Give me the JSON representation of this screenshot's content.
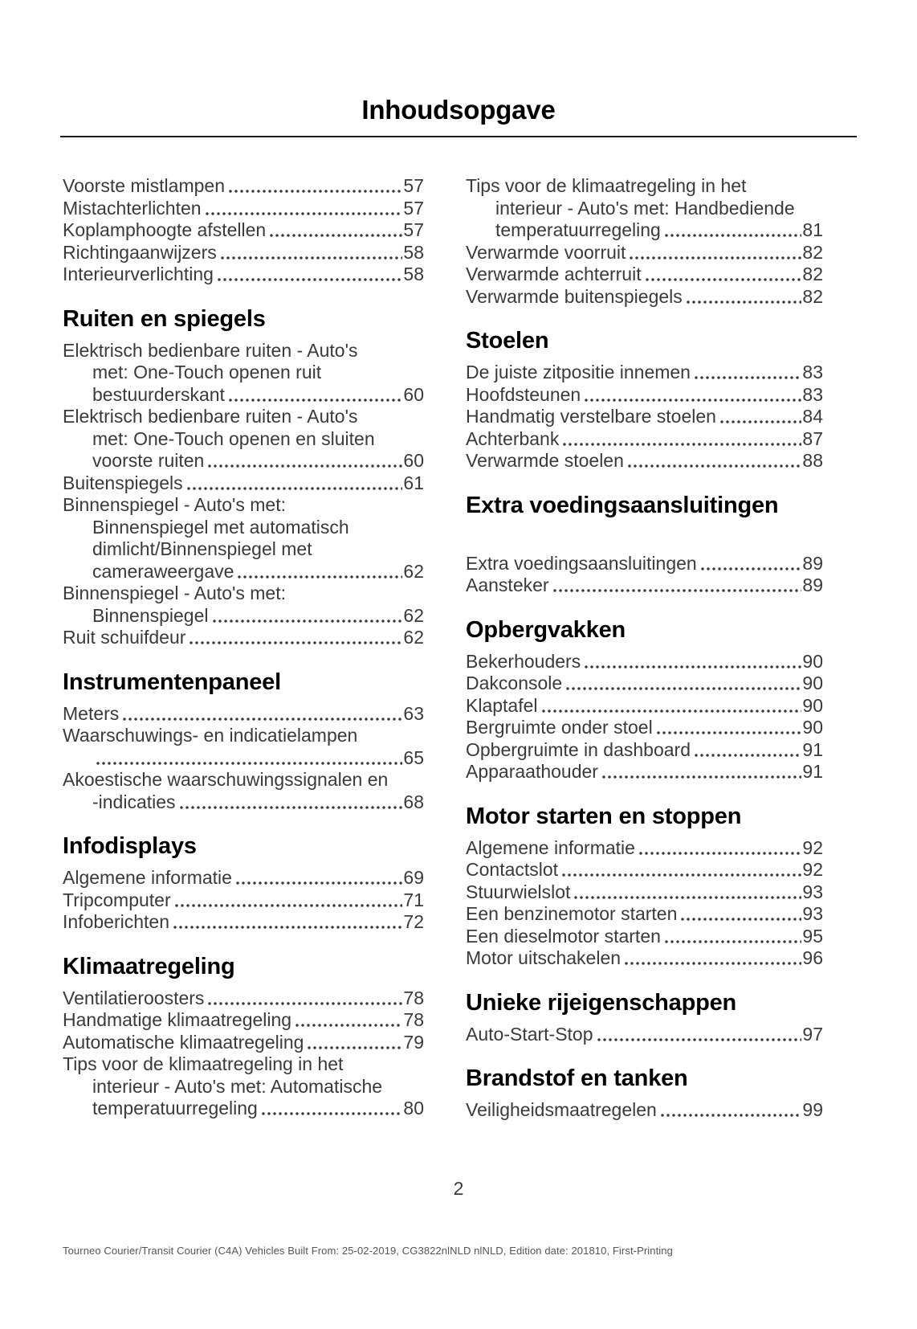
{
  "page": {
    "title": "Inhoudsopgave",
    "page_number": "2",
    "footer": "Tourneo Courier/Transit Courier (C4A) Vehicles Built From: 25-02-2019, CG3822nlNLD nlNLD, Edition date: 201810, First-Printing"
  },
  "colors": {
    "heading_text": "#000000",
    "entry_text": "#3a3a3a",
    "divider": "#1c1c1c"
  },
  "columns": {
    "left": [
      {
        "heading": null,
        "entries": [
          {
            "lines": [
              "Voorste mistlampen"
            ],
            "page": "57"
          },
          {
            "lines": [
              "Mistachterlichten"
            ],
            "page": "57"
          },
          {
            "lines": [
              "Koplamphoogte afstellen"
            ],
            "page": "57"
          },
          {
            "lines": [
              "Richtingaanwijzers"
            ],
            "page": "58"
          },
          {
            "lines": [
              "Interieurverlichting"
            ],
            "page": "58"
          }
        ]
      },
      {
        "heading": "Ruiten en spiegels",
        "entries": [
          {
            "lines": [
              "Elektrisch bedienbare ruiten - Auto's",
              "met: One-Touch openen ruit",
              "bestuurderskant"
            ],
            "page": "60"
          },
          {
            "lines": [
              "Elektrisch bedienbare ruiten - Auto's",
              "met: One-Touch openen en sluiten",
              "voorste ruiten"
            ],
            "page": "60"
          },
          {
            "lines": [
              "Buitenspiegels"
            ],
            "page": "61"
          },
          {
            "lines": [
              "Binnenspiegel - Auto's met:",
              "Binnenspiegel met automatisch",
              "dimlicht/Binnenspiegel met",
              "cameraweergave"
            ],
            "page": "62"
          },
          {
            "lines": [
              "Binnenspiegel - Auto's met:",
              "Binnenspiegel"
            ],
            "page": "62"
          },
          {
            "lines": [
              "Ruit schuifdeur"
            ],
            "page": "62"
          }
        ]
      },
      {
        "heading": "Instrumentenpaneel",
        "entries": [
          {
            "lines": [
              "Meters"
            ],
            "page": "63"
          },
          {
            "lines": [
              "Waarschuwings- en indicatielampen",
              ""
            ],
            "page": "65"
          },
          {
            "lines": [
              "Akoestische waarschuwingssignalen en",
              "-indicaties"
            ],
            "page": "68"
          }
        ]
      },
      {
        "heading": "Infodisplays",
        "entries": [
          {
            "lines": [
              "Algemene informatie"
            ],
            "page": "69"
          },
          {
            "lines": [
              "Tripcomputer"
            ],
            "page": "71"
          },
          {
            "lines": [
              "Infoberichten"
            ],
            "page": "72"
          }
        ]
      },
      {
        "heading": "Klimaatregeling",
        "entries": [
          {
            "lines": [
              "Ventilatieroosters"
            ],
            "page": "78"
          },
          {
            "lines": [
              "Handmatige klimaatregeling"
            ],
            "page": "78"
          },
          {
            "lines": [
              "Automatische klimaatregeling"
            ],
            "page": "79"
          },
          {
            "lines": [
              "Tips voor de klimaatregeling in het",
              "interieur - Auto's met: Automatische",
              "temperatuurregeling"
            ],
            "page": "80"
          }
        ]
      }
    ],
    "right": [
      {
        "heading": null,
        "entries": [
          {
            "lines": [
              "Tips voor de klimaatregeling in het",
              "interieur - Auto's met: Handbediende",
              "temperatuurregeling"
            ],
            "page": "81"
          },
          {
            "lines": [
              "Verwarmde voorruit"
            ],
            "page": "82"
          },
          {
            "lines": [
              "Verwarmde achterruit"
            ],
            "page": "82"
          },
          {
            "lines": [
              "Verwarmde buitenspiegels"
            ],
            "page": "82"
          }
        ]
      },
      {
        "heading": "Stoelen",
        "entries": [
          {
            "lines": [
              "De juiste zitpositie innemen"
            ],
            "page": "83"
          },
          {
            "lines": [
              "Hoofdsteunen"
            ],
            "page": "83"
          },
          {
            "lines": [
              "Handmatig verstelbare stoelen"
            ],
            "page": "84"
          },
          {
            "lines": [
              "Achterbank"
            ],
            "page": "87"
          },
          {
            "lines": [
              "Verwarmde stoelen"
            ],
            "page": "88"
          }
        ]
      },
      {
        "heading": "Extra voedingsaansluitingen",
        "gap_after_heading": true,
        "entries": [
          {
            "lines": [
              "Extra voedingsaansluitingen"
            ],
            "page": "89"
          },
          {
            "lines": [
              "Aansteker"
            ],
            "page": "89"
          }
        ]
      },
      {
        "heading": "Opbergvakken",
        "entries": [
          {
            "lines": [
              "Bekerhouders"
            ],
            "page": "90"
          },
          {
            "lines": [
              "Dakconsole"
            ],
            "page": "90"
          },
          {
            "lines": [
              "Klaptafel"
            ],
            "page": "90"
          },
          {
            "lines": [
              "Bergruimte onder stoel"
            ],
            "page": "90"
          },
          {
            "lines": [
              "Opbergruimte in dashboard"
            ],
            "page": "91"
          },
          {
            "lines": [
              "Apparaathouder"
            ],
            "page": "91"
          }
        ]
      },
      {
        "heading": "Motor starten en stoppen",
        "entries": [
          {
            "lines": [
              "Algemene informatie"
            ],
            "page": "92"
          },
          {
            "lines": [
              "Contactslot"
            ],
            "page": "92"
          },
          {
            "lines": [
              "Stuurwielslot"
            ],
            "page": "93"
          },
          {
            "lines": [
              "Een benzinemotor starten"
            ],
            "page": "93"
          },
          {
            "lines": [
              "Een dieselmotor starten"
            ],
            "page": "95"
          },
          {
            "lines": [
              "Motor uitschakelen"
            ],
            "page": "96"
          }
        ]
      },
      {
        "heading": "Unieke rijeigenschappen",
        "entries": [
          {
            "lines": [
              "Auto-Start-Stop"
            ],
            "page": "97"
          }
        ]
      },
      {
        "heading": "Brandstof en tanken",
        "entries": [
          {
            "lines": [
              "Veiligheidsmaatregelen"
            ],
            "page": "99"
          }
        ]
      }
    ]
  }
}
